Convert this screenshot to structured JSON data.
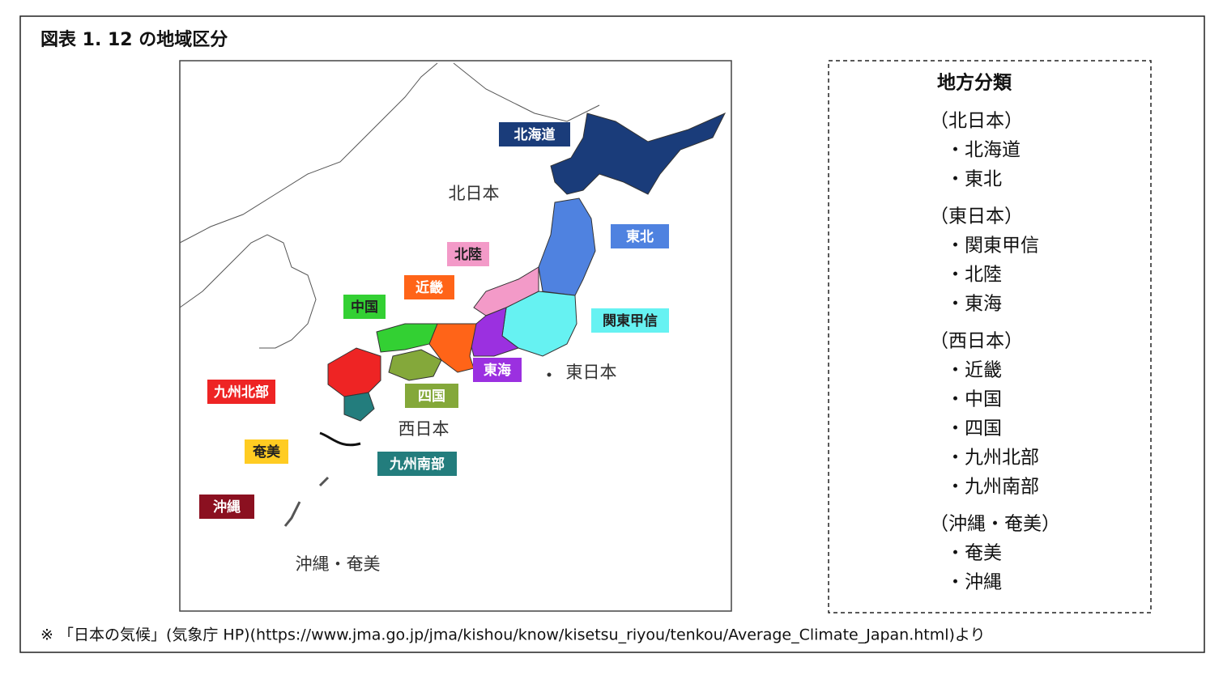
{
  "title": "図表 1. 12 の地域区分",
  "map": {
    "regions": [
      "北海道",
      "東北",
      "関東甲信",
      "北陸",
      "東海",
      "近畿",
      "中国",
      "四国",
      "九州北部",
      "九州南部",
      "奄美",
      "沖縄"
    ],
    "groups": [
      "北日本",
      "東日本",
      "西日本",
      "沖縄・奄美"
    ]
  },
  "legend": {
    "heading": "地方分類",
    "groups": [
      {
        "name": "（北日本）",
        "items": [
          "・北海道",
          "・東北"
        ]
      },
      {
        "name": "（東日本）",
        "items": [
          "・関東甲信",
          "・北陸",
          "・東海"
        ]
      },
      {
        "name": "（西日本）",
        "items": [
          "・近畿",
          "・中国",
          "・四国",
          "・九州北部",
          "・九州南部"
        ]
      },
      {
        "name": "（沖縄・奄美）",
        "items": [
          "・奄美",
          "・沖縄"
        ]
      }
    ]
  },
  "footnote": "※ 「日本の気候」(気象庁 HP)(https://www.jma.go.jp/jma/kishou/know/kisetsu_riyou/tenkou/Average_Climate_Japan.html)より"
}
